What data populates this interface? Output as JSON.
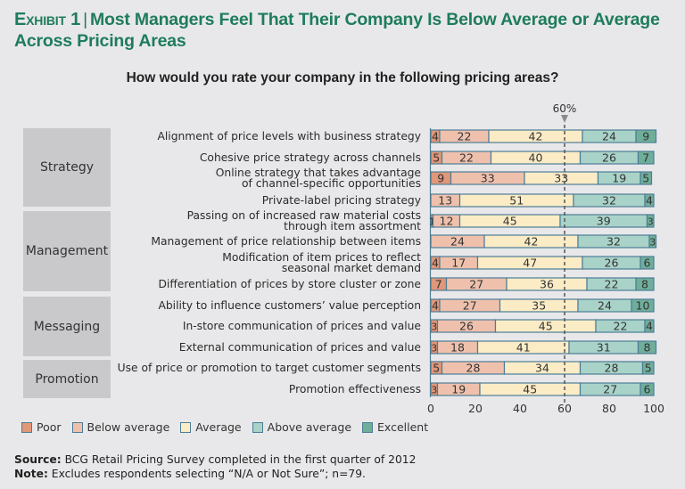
{
  "title": {
    "exhibit": "Exhibit 1",
    "text": "Most Managers Feel That Their Company Is Below Average or Average Across Pricing Areas"
  },
  "question": "How would you rate your company in the following pricing areas?",
  "colors": {
    "poor": "#e0977a",
    "below_average": "#efc1ad",
    "average": "#fcecc6",
    "above_average": "#a9d3c8",
    "excellent": "#6fae9a",
    "border": "#4d7d96",
    "title": "#1e7c5c"
  },
  "groups": [
    {
      "label": "Strategy"
    },
    {
      "label": "Management"
    },
    {
      "label": "Messaging"
    },
    {
      "label": "Promotion"
    }
  ],
  "chart_data": {
    "type": "bar",
    "orientation": "horizontal-stacked",
    "title": "How would you rate your company in the following pricing areas?",
    "xlabel": "",
    "ylabel": "",
    "xlim": [
      0,
      100
    ],
    "xticks": [
      "0",
      "20",
      "40",
      "60",
      "80",
      "100"
    ],
    "reference_line": {
      "value": 60,
      "label": "60%"
    },
    "legend_position": "bottom-left",
    "categories": [
      {
        "group": "Strategy",
        "label": [
          "Alignment of price levels with business strategy"
        ]
      },
      {
        "group": "Strategy",
        "label": [
          "Cohesive price strategy across channels"
        ]
      },
      {
        "group": "Strategy",
        "label": [
          "Online strategy that takes advantage",
          "of channel-specific opportunities"
        ]
      },
      {
        "group": "Strategy",
        "label": [
          "Private-label pricing strategy"
        ]
      },
      {
        "group": "Management",
        "label": [
          "Passing on of increased raw material costs",
          "through item assortment"
        ]
      },
      {
        "group": "Management",
        "label": [
          "Management of price relationship between items"
        ]
      },
      {
        "group": "Management",
        "label": [
          "Modification of item prices to reflect",
          "seasonal market demand"
        ]
      },
      {
        "group": "Management",
        "label": [
          "Differentiation of prices by store cluster or zone"
        ]
      },
      {
        "group": "Messaging",
        "label": [
          "Ability to influence customers’ value perception"
        ]
      },
      {
        "group": "Messaging",
        "label": [
          "In-store communication of prices and value"
        ]
      },
      {
        "group": "Messaging",
        "label": [
          "External communication of prices and value"
        ]
      },
      {
        "group": "Promotion",
        "label": [
          "Use of price or promotion to target customer segments"
        ]
      },
      {
        "group": "Promotion",
        "label": [
          "Promotion effectiveness"
        ]
      }
    ],
    "series": [
      {
        "name": "Poor",
        "key": "poor",
        "values": [
          4,
          5,
          9,
          0,
          1,
          0,
          4,
          7,
          4,
          3,
          3,
          5,
          3
        ]
      },
      {
        "name": "Below average",
        "key": "below_average",
        "values": [
          22,
          22,
          33,
          13,
          12,
          24,
          17,
          27,
          27,
          26,
          18,
          28,
          19
        ]
      },
      {
        "name": "Average",
        "key": "average",
        "values": [
          42,
          40,
          33,
          51,
          45,
          42,
          47,
          36,
          35,
          45,
          41,
          34,
          45
        ]
      },
      {
        "name": "Above average",
        "key": "above_average",
        "values": [
          24,
          26,
          19,
          32,
          39,
          32,
          26,
          22,
          24,
          22,
          31,
          28,
          27
        ]
      },
      {
        "name": "Excellent",
        "key": "excellent",
        "values": [
          9,
          7,
          5,
          4,
          3,
          3,
          6,
          8,
          10,
          4,
          8,
          5,
          6
        ]
      }
    ]
  },
  "legend": [
    {
      "label": "Poor",
      "key": "poor"
    },
    {
      "label": "Below average",
      "key": "below_average"
    },
    {
      "label": "Average",
      "key": "average"
    },
    {
      "label": "Above average",
      "key": "above_average"
    },
    {
      "label": "Excellent",
      "key": "excellent"
    }
  ],
  "footer": {
    "source_label": "Source:",
    "source_text": " BCG Retail Pricing Survey completed in the first quarter of 2012",
    "note_label": "Note:",
    "note_text": " Excludes respondents selecting “N/A or Not Sure”; n=79."
  }
}
